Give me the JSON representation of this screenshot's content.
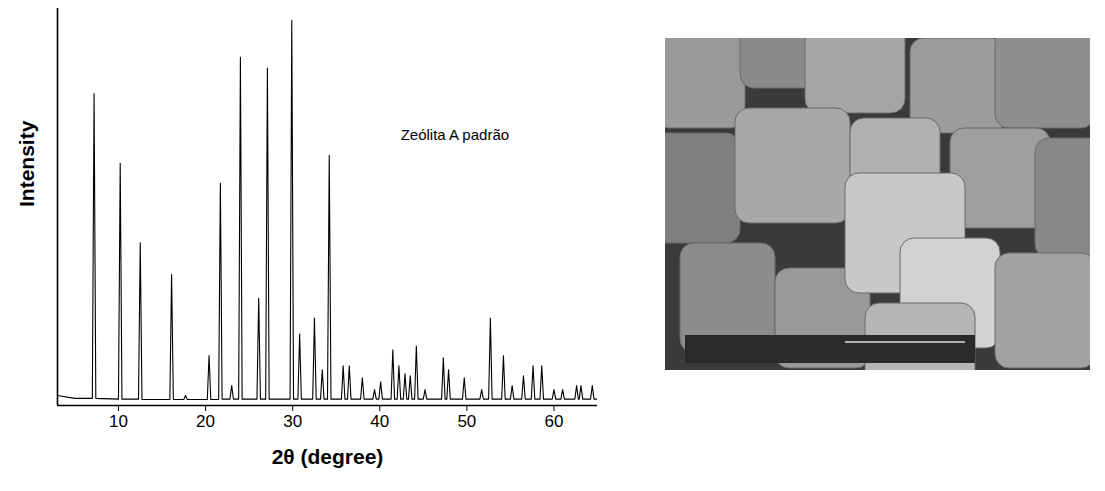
{
  "chart_data": {
    "type": "line",
    "xlabel": "2θ (degree)",
    "ylabel": "Intensity",
    "annotations": [
      {
        "text": "Zeólita A padrão",
        "x": 42.4,
        "y": 68
      }
    ],
    "color": "#000000",
    "xlim": [
      3,
      65
    ],
    "xticks": [
      10,
      20,
      30,
      40,
      50,
      60
    ],
    "ylim": [
      0,
      100
    ],
    "tick_labels": "x",
    "x": [
      3.0,
      5.0,
      7.0,
      7.2,
      7.4,
      10.0,
      10.2,
      10.4,
      12.3,
      12.5,
      12.7,
      15.9,
      16.1,
      16.3,
      17.5,
      17.7,
      17.9,
      20.2,
      20.4,
      20.6,
      21.5,
      21.7,
      21.9,
      22.8,
      23.0,
      23.2,
      23.8,
      24.0,
      24.2,
      25.9,
      26.1,
      26.3,
      26.9,
      27.1,
      27.3,
      29.7,
      29.9,
      30.1,
      30.6,
      30.8,
      31.0,
      32.3,
      32.5,
      32.7,
      33.2,
      33.4,
      33.6,
      34.0,
      34.2,
      34.4,
      35.6,
      35.8,
      36.0,
      36.3,
      36.5,
      36.7,
      37.8,
      38.0,
      38.2,
      39.2,
      39.4,
      39.6,
      39.9,
      40.1,
      40.3,
      41.3,
      41.5,
      41.7,
      42.0,
      42.2,
      42.4,
      42.7,
      42.9,
      43.1,
      43.3,
      43.5,
      43.7,
      44.0,
      44.2,
      44.4,
      45.0,
      45.2,
      45.4,
      47.1,
      47.3,
      47.5,
      47.7,
      47.9,
      48.1,
      49.5,
      49.7,
      49.9,
      51.5,
      51.7,
      51.9,
      52.5,
      52.7,
      52.9,
      54.0,
      54.2,
      54.4,
      55.0,
      55.2,
      55.4,
      56.3,
      56.5,
      56.7,
      57.4,
      57.6,
      57.8,
      58.4,
      58.6,
      58.8,
      59.8,
      60.0,
      60.2,
      60.8,
      61.0,
      61.2,
      62.4,
      62.6,
      62.8,
      62.9,
      63.1,
      63.3,
      64.2,
      64.4,
      64.6,
      65.0
    ],
    "values": [
      2.5,
      1.8,
      1.8,
      78.6,
      1.8,
      1.6,
      61,
      1.6,
      1.6,
      41,
      1.5,
      1.5,
      33,
      1.5,
      1.5,
      2.5,
      1.5,
      1.5,
      12.6,
      1.5,
      1.5,
      56,
      1.6,
      1.6,
      5,
      1.6,
      1.6,
      87.7,
      1.6,
      1.6,
      27,
      1.6,
      1.6,
      85,
      1.6,
      1.6,
      97,
      1.6,
      1.6,
      18,
      1.6,
      1.6,
      22,
      1.6,
      1.6,
      9,
      1.6,
      1.6,
      63,
      1.6,
      1.6,
      10,
      1.6,
      1.6,
      10,
      1.6,
      1.6,
      7,
      1.6,
      1.6,
      4,
      1.6,
      1.6,
      6,
      1.6,
      1.6,
      14,
      1.6,
      1.6,
      10,
      1.6,
      1.6,
      8,
      1.6,
      1.6,
      7.5,
      1.6,
      1.6,
      15,
      1.6,
      1.6,
      4,
      1.6,
      1.6,
      12,
      1.6,
      1.6,
      9,
      1.6,
      1.6,
      7,
      1.6,
      1.6,
      4,
      1.6,
      1.6,
      22,
      1.6,
      1.6,
      12.5,
      1.6,
      1.6,
      5,
      1.6,
      1.6,
      7.5,
      1.6,
      1.6,
      10,
      1.6,
      1.6,
      10,
      1.6,
      1.6,
      4,
      1.6,
      1.6,
      4,
      1.6,
      1.6,
      5,
      1.6,
      1.6,
      5,
      1.6,
      1.6,
      5,
      1.6,
      1.6
    ]
  }
}
